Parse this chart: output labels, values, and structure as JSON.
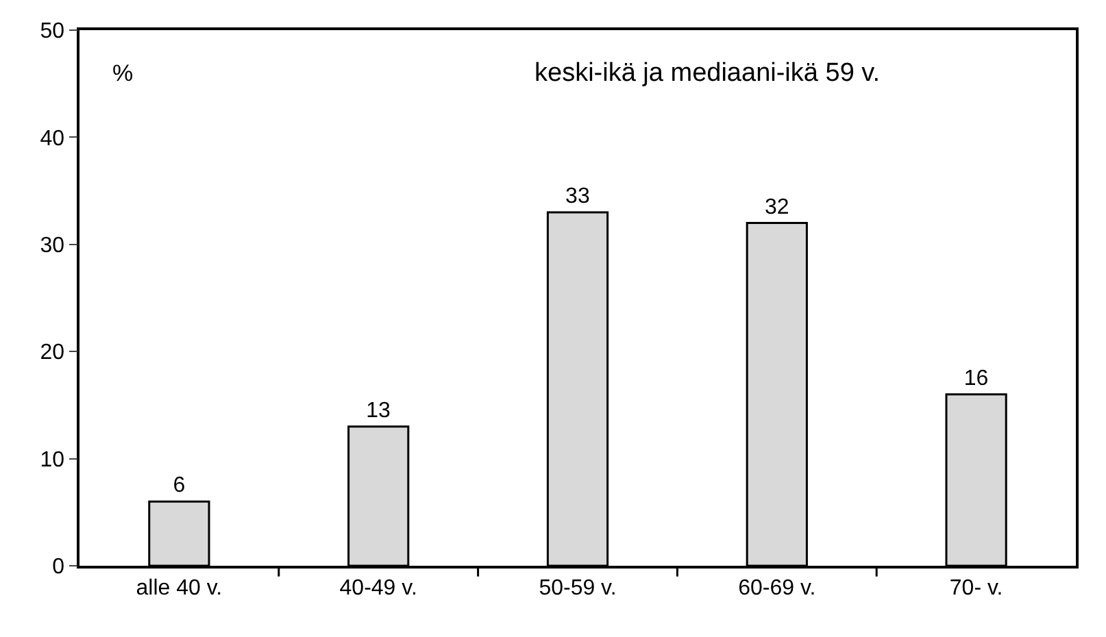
{
  "chart_data": {
    "type": "bar",
    "title": "keski-ikä ja mediaani-ikä 59 v.",
    "ylabel": "%",
    "categories": [
      "alle 40 v.",
      "40-49 v.",
      "50-59 v.",
      "60-69 v.",
      "70- v."
    ],
    "values": [
      6,
      13,
      33,
      32,
      16
    ],
    "color": "#d9d9d9",
    "ylim": [
      0,
      50
    ],
    "yticks": [
      0,
      10,
      20,
      30,
      40,
      50
    ],
    "data_labels": true,
    "legend": false
  }
}
